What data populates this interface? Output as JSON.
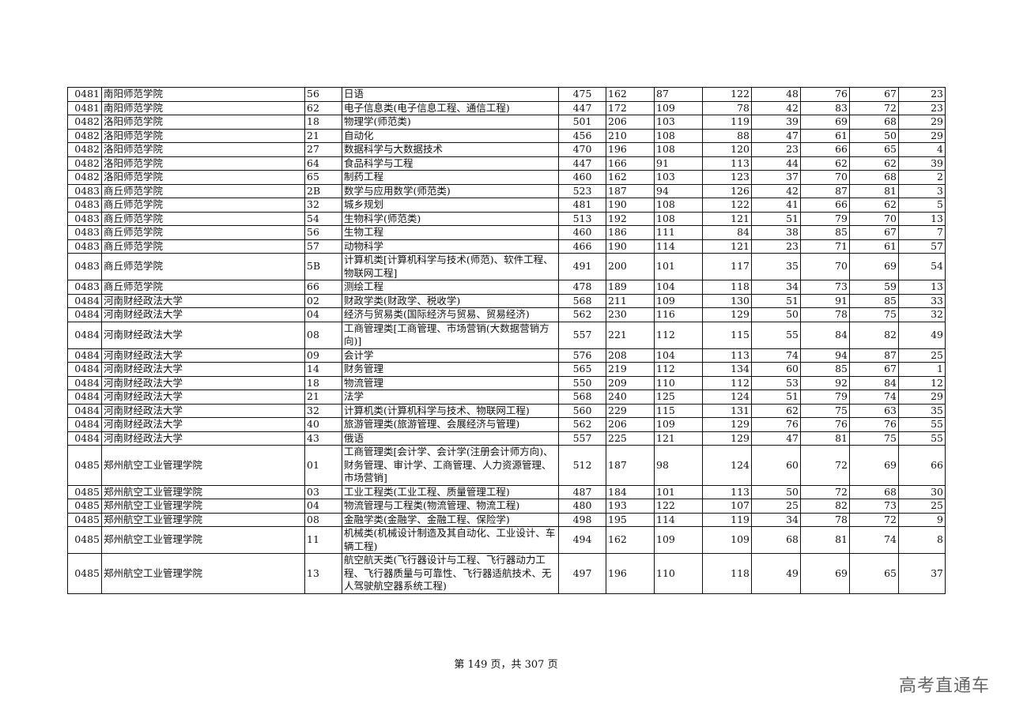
{
  "rows": [
    [
      "0481",
      "南阳师范学院",
      "56",
      "日语",
      "475",
      "162",
      "87",
      "122",
      "48",
      "76",
      "67",
      "23"
    ],
    [
      "0481",
      "南阳师范学院",
      "62",
      "电子信息类(电子信息工程、通信工程)",
      "447",
      "172",
      "109",
      "78",
      "42",
      "83",
      "72",
      "23"
    ],
    [
      "0482",
      "洛阳师范学院",
      "18",
      "物理学(师范类)",
      "501",
      "206",
      "103",
      "119",
      "39",
      "69",
      "68",
      "29"
    ],
    [
      "0482",
      "洛阳师范学院",
      "21",
      "自动化",
      "456",
      "210",
      "108",
      "88",
      "47",
      "61",
      "50",
      "29"
    ],
    [
      "0482",
      "洛阳师范学院",
      "27",
      "数据科学与大数据技术",
      "470",
      "196",
      "108",
      "120",
      "23",
      "66",
      "65",
      "4"
    ],
    [
      "0482",
      "洛阳师范学院",
      "64",
      "食品科学与工程",
      "447",
      "166",
      "91",
      "113",
      "44",
      "62",
      "62",
      "39"
    ],
    [
      "0482",
      "洛阳师范学院",
      "65",
      "制药工程",
      "460",
      "162",
      "103",
      "123",
      "37",
      "70",
      "68",
      "2"
    ],
    [
      "0483",
      "商丘师范学院",
      "2B",
      "数学与应用数学(师范类)",
      "523",
      "187",
      "94",
      "126",
      "42",
      "87",
      "81",
      "3"
    ],
    [
      "0483",
      "商丘师范学院",
      "32",
      "城乡规划",
      "481",
      "190",
      "108",
      "122",
      "41",
      "66",
      "62",
      "5"
    ],
    [
      "0483",
      "商丘师范学院",
      "54",
      "生物科学(师范类)",
      "513",
      "192",
      "108",
      "121",
      "51",
      "79",
      "70",
      "13"
    ],
    [
      "0483",
      "商丘师范学院",
      "56",
      "生物工程",
      "460",
      "186",
      "111",
      "84",
      "38",
      "85",
      "67",
      "7"
    ],
    [
      "0483",
      "商丘师范学院",
      "57",
      "动物科学",
      "466",
      "190",
      "114",
      "121",
      "23",
      "71",
      "61",
      "57"
    ],
    [
      "0483",
      "商丘师范学院",
      "5B",
      "计算机类[计算机科学与技术(师范)、软件工程、物联网工程]",
      "491",
      "200",
      "101",
      "117",
      "35",
      "70",
      "69",
      "54"
    ],
    [
      "0483",
      "商丘师范学院",
      "66",
      "测绘工程",
      "478",
      "189",
      "104",
      "118",
      "34",
      "73",
      "59",
      "13"
    ],
    [
      "0484",
      "河南财经政法大学",
      "02",
      "财政学类(财政学、税收学)",
      "568",
      "211",
      "109",
      "130",
      "51",
      "91",
      "85",
      "33"
    ],
    [
      "0484",
      "河南财经政法大学",
      "04",
      "经济与贸易类(国际经济与贸易、贸易经济)",
      "562",
      "230",
      "116",
      "129",
      "50",
      "78",
      "75",
      "32"
    ],
    [
      "0484",
      "河南财经政法大学",
      "08",
      "工商管理类[工商管理、市场营销(大数据营销方向)]",
      "557",
      "221",
      "112",
      "115",
      "55",
      "84",
      "82",
      "49"
    ],
    [
      "0484",
      "河南财经政法大学",
      "09",
      "会计学",
      "576",
      "208",
      "104",
      "113",
      "74",
      "94",
      "87",
      "25"
    ],
    [
      "0484",
      "河南财经政法大学",
      "14",
      "财务管理",
      "565",
      "219",
      "112",
      "134",
      "60",
      "85",
      "67",
      "1"
    ],
    [
      "0484",
      "河南财经政法大学",
      "18",
      "物流管理",
      "550",
      "209",
      "110",
      "112",
      "53",
      "92",
      "84",
      "12"
    ],
    [
      "0484",
      "河南财经政法大学",
      "21",
      "法学",
      "568",
      "240",
      "125",
      "124",
      "51",
      "79",
      "74",
      "29"
    ],
    [
      "0484",
      "河南财经政法大学",
      "32",
      "计算机类(计算机科学与技术、物联网工程)",
      "560",
      "229",
      "115",
      "131",
      "62",
      "75",
      "63",
      "35"
    ],
    [
      "0484",
      "河南财经政法大学",
      "40",
      "旅游管理类(旅游管理、会展经济与管理)",
      "562",
      "206",
      "109",
      "129",
      "76",
      "76",
      "76",
      "55"
    ],
    [
      "0484",
      "河南财经政法大学",
      "43",
      "俄语",
      "557",
      "225",
      "121",
      "129",
      "47",
      "81",
      "75",
      "55"
    ],
    [
      "0485",
      "郑州航空工业管理学院",
      "01",
      "工商管理类[会计学、会计学(注册会计师方向)、财务管理、审计学、工商管理、人力资源管理、市场营销]",
      "512",
      "187",
      "98",
      "124",
      "60",
      "72",
      "69",
      "66"
    ],
    [
      "0485",
      "郑州航空工业管理学院",
      "03",
      "工业工程类(工业工程、质量管理工程)",
      "487",
      "184",
      "101",
      "113",
      "50",
      "72",
      "68",
      "30"
    ],
    [
      "0485",
      "郑州航空工业管理学院",
      "04",
      "物流管理与工程类(物流管理、物流工程)",
      "480",
      "193",
      "122",
      "107",
      "25",
      "82",
      "73",
      "25"
    ],
    [
      "0485",
      "郑州航空工业管理学院",
      "08",
      "金融学类(金融学、金融工程、保险学)",
      "498",
      "195",
      "114",
      "119",
      "34",
      "78",
      "72",
      "9"
    ],
    [
      "0485",
      "郑州航空工业管理学院",
      "11",
      "机械类(机械设计制造及其自动化、工业设计、车辆工程)",
      "494",
      "162",
      "109",
      "109",
      "68",
      "81",
      "74",
      "8"
    ],
    [
      "0485",
      "郑州航空工业管理学院",
      "13",
      "航空航天类(飞行器设计与工程、飞行器动力工程、飞行器质量与可靠性、飞行器适航技术、无人驾驶航空器系统工程)",
      "497",
      "196",
      "110",
      "118",
      "49",
      "69",
      "65",
      "37"
    ]
  ],
  "footer": "第 149 页，共 307 页",
  "watermark": "高考直通车"
}
